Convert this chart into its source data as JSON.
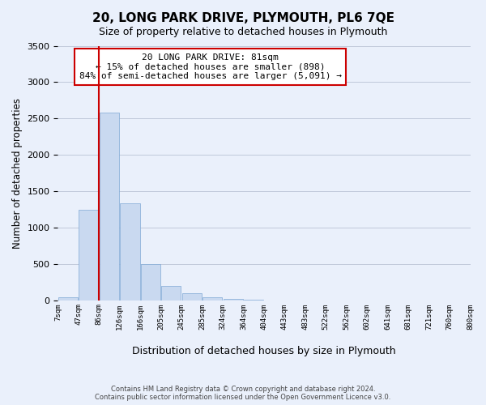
{
  "title": "20, LONG PARK DRIVE, PLYMOUTH, PL6 7QE",
  "subtitle": "Size of property relative to detached houses in Plymouth",
  "xlabel": "Distribution of detached houses by size in Plymouth",
  "ylabel": "Number of detached properties",
  "bin_labels": [
    "7sqm",
    "47sqm",
    "86sqm",
    "126sqm",
    "166sqm",
    "205sqm",
    "245sqm",
    "285sqm",
    "324sqm",
    "364sqm",
    "404sqm",
    "443sqm",
    "483sqm",
    "522sqm",
    "562sqm",
    "602sqm",
    "641sqm",
    "681sqm",
    "721sqm",
    "760sqm",
    "800sqm"
  ],
  "bar_values": [
    50,
    1250,
    2580,
    1340,
    500,
    200,
    110,
    50,
    30,
    20,
    10,
    5,
    3,
    0,
    0,
    0,
    0,
    0,
    0,
    0
  ],
  "bar_color": "#c9d9f0",
  "bar_edge_color": "#7fa8d4",
  "vline_x": 1.5,
  "vline_color": "#cc0000",
  "ylim": [
    0,
    3500
  ],
  "yticks": [
    0,
    500,
    1000,
    1500,
    2000,
    2500,
    3000,
    3500
  ],
  "annotation_title": "20 LONG PARK DRIVE: 81sqm",
  "annotation_line1": "← 15% of detached houses are smaller (898)",
  "annotation_line2": "84% of semi-detached houses are larger (5,091) →",
  "annotation_box_color": "#ffffff",
  "annotation_box_edge": "#cc0000",
  "footer1": "Contains HM Land Registry data © Crown copyright and database right 2024.",
  "footer2": "Contains public sector information licensed under the Open Government Licence v3.0.",
  "bg_color": "#eaf0fb",
  "plot_bg_color": "#eaf0fb"
}
